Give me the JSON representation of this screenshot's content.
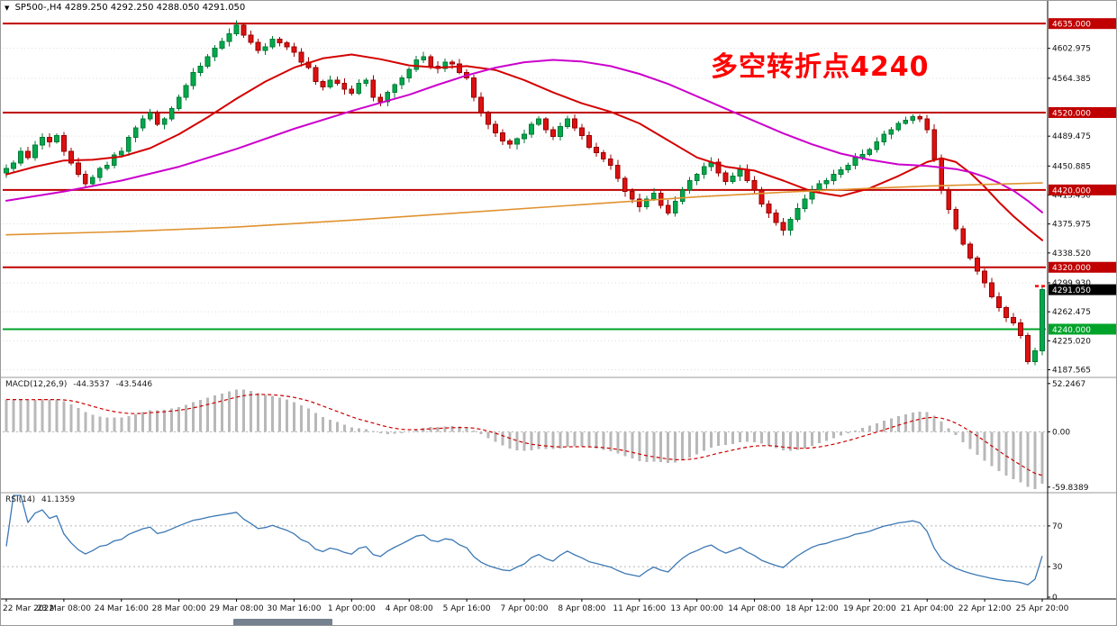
{
  "header": {
    "dropdown_icon": "▼",
    "symbol_info": "SP500-,H4 4289.250 4292.250 4288.050 4291.050"
  },
  "annotation": {
    "text": "多空转折点4240",
    "color": "#ff0000"
  },
  "colors": {
    "up_candle": "#00a94c",
    "up_border": "#007a35",
    "down_candle": "#dd1111",
    "down_border": "#990000",
    "ma_fast": "#d40000",
    "ma_slow": "#cc00cc",
    "ma_long": "#e0922f",
    "level_red": "#c00000",
    "level_green": "#00a32a",
    "current_badge_bg": "#000000",
    "macd_hist": "#b8b8b8",
    "macd_signal": "#cc0000",
    "rsi_line": "#3c78b4",
    "grid": "#dcdcdc",
    "axis_text": "#111111"
  },
  "chart_data": [
    {
      "type": "candlestick",
      "title": "SP500- H4 price chart",
      "y_range": [
        4180,
        4655
      ],
      "bars_per_label": 8,
      "x_labels": [
        "22 Mar 2022",
        "23 Mar 08:00",
        "24 Mar 16:00",
        "28 Mar 00:00",
        "29 Mar 08:00",
        "30 Mar 16:00",
        "1 Apr 00:00",
        "4 Apr 08:00",
        "5 Apr 16:00",
        "7 Apr 00:00",
        "8 Apr 08:00",
        "11 Apr 16:00",
        "13 Apr 00:00",
        "14 Apr 08:00",
        "18 Apr 12:00",
        "19 Apr 20:00",
        "21 Apr 04:00",
        "22 Apr 12:00",
        "25 Apr 20:00"
      ],
      "y_ticks": [
        {
          "label": "4602.975",
          "value": 4602.975
        },
        {
          "label": "4564.385",
          "value": 4564.385
        },
        {
          "label": "4489.475",
          "value": 4489.475
        },
        {
          "label": "4450.885",
          "value": 4450.885
        },
        {
          "label": "4413.430",
          "value": 4413.43
        },
        {
          "label": "4375.975",
          "value": 4375.975
        },
        {
          "label": "4338.520",
          "value": 4338.52
        },
        {
          "label": "4299.930",
          "value": 4299.93
        },
        {
          "label": "4262.475",
          "value": 4262.475
        },
        {
          "label": "4225.020",
          "value": 4225.02
        },
        {
          "label": "4187.565",
          "value": 4187.565
        }
      ],
      "levels": [
        {
          "label": "4635.000",
          "value": 4635.0,
          "color": "#c00000"
        },
        {
          "label": "4520.000",
          "value": 4520.0,
          "color": "#c00000"
        },
        {
          "label": "4420.000",
          "value": 4420.0,
          "color": "#c00000"
        },
        {
          "label": "4320.000",
          "value": 4320.0,
          "color": "#c00000"
        },
        {
          "label": "4240.000",
          "value": 4240.0,
          "color": "#00a32a"
        }
      ],
      "current_price": {
        "label": "4291.050",
        "value": 4291.05
      },
      "end_markers": {
        "price": 4296,
        "color": "#ff0000",
        "count": 2
      },
      "first_open": 4442,
      "closes": [
        4448,
        4455,
        4470,
        4462,
        4478,
        4488,
        4482,
        4490,
        4470,
        4455,
        4440,
        4428,
        4436,
        4448,
        4452,
        4465,
        4470,
        4488,
        4500,
        4512,
        4520,
        4505,
        4512,
        4525,
        4540,
        4555,
        4572,
        4580,
        4592,
        4603,
        4612,
        4622,
        4633,
        4620,
        4611,
        4600,
        4605,
        4615,
        4610,
        4605,
        4598,
        4585,
        4578,
        4560,
        4553,
        4562,
        4558,
        4550,
        4545,
        4558,
        4562,
        4540,
        4534,
        4546,
        4556,
        4565,
        4576,
        4588,
        4592,
        4580,
        4577,
        4585,
        4583,
        4572,
        4565,
        4540,
        4520,
        4505,
        4494,
        4483,
        4479,
        4486,
        4492,
        4505,
        4512,
        4498,
        4489,
        4502,
        4512,
        4500,
        4490,
        4475,
        4468,
        4460,
        4452,
        4435,
        4418,
        4408,
        4398,
        4408,
        4416,
        4400,
        4390,
        4405,
        4420,
        4432,
        4440,
        4450,
        4456,
        4442,
        4431,
        4438,
        4446,
        4432,
        4420,
        4402,
        4390,
        4378,
        4368,
        4382,
        4396,
        4408,
        4420,
        4428,
        4432,
        4440,
        4446,
        4452,
        4462,
        4466,
        4472,
        4482,
        4492,
        4498,
        4506,
        4510,
        4515,
        4512,
        4498,
        4460,
        4420,
        4395,
        4370,
        4350,
        4332,
        4315,
        4300,
        4282,
        4268,
        4255,
        4248,
        4232,
        4198,
        4212,
        4291
      ],
      "ma_lines": [
        {
          "name": "ma-fast-red",
          "color": "#d40000",
          "width": 2,
          "points": [
            [
              0,
              4440
            ],
            [
              4,
              4450
            ],
            [
              8,
              4458
            ],
            [
              12,
              4459
            ],
            [
              16,
              4463
            ],
            [
              20,
              4474
            ],
            [
              24,
              4492
            ],
            [
              28,
              4514
            ],
            [
              32,
              4538
            ],
            [
              36,
              4560
            ],
            [
              40,
              4578
            ],
            [
              44,
              4590
            ],
            [
              48,
              4595
            ],
            [
              52,
              4589
            ],
            [
              56,
              4581
            ],
            [
              60,
              4578
            ],
            [
              64,
              4580
            ],
            [
              68,
              4575
            ],
            [
              72,
              4562
            ],
            [
              76,
              4546
            ],
            [
              80,
              4532
            ],
            [
              84,
              4521
            ],
            [
              88,
              4506
            ],
            [
              92,
              4484
            ],
            [
              96,
              4462
            ],
            [
              100,
              4450
            ],
            [
              104,
              4445
            ],
            [
              108,
              4432
            ],
            [
              112,
              4418
            ],
            [
              116,
              4412
            ],
            [
              120,
              4422
            ],
            [
              124,
              4438
            ],
            [
              128,
              4456
            ],
            [
              130,
              4461
            ],
            [
              132,
              4456
            ],
            [
              134,
              4442
            ],
            [
              136,
              4424
            ],
            [
              138,
              4404
            ],
            [
              140,
              4386
            ],
            [
              142,
              4370
            ],
            [
              144,
              4355
            ]
          ]
        },
        {
          "name": "ma-slow-magenta",
          "color": "#cc00cc",
          "width": 2,
          "points": [
            [
              0,
              4406
            ],
            [
              8,
              4418
            ],
            [
              16,
              4432
            ],
            [
              24,
              4450
            ],
            [
              32,
              4473
            ],
            [
              40,
              4499
            ],
            [
              48,
              4522
            ],
            [
              56,
              4543
            ],
            [
              60,
              4556
            ],
            [
              64,
              4568
            ],
            [
              68,
              4578
            ],
            [
              72,
              4585
            ],
            [
              76,
              4588
            ],
            [
              80,
              4586
            ],
            [
              84,
              4580
            ],
            [
              88,
              4570
            ],
            [
              92,
              4557
            ],
            [
              96,
              4541
            ],
            [
              100,
              4525
            ],
            [
              104,
              4509
            ],
            [
              108,
              4493
            ],
            [
              112,
              4479
            ],
            [
              116,
              4467
            ],
            [
              120,
              4459
            ],
            [
              124,
              4453
            ],
            [
              128,
              4451
            ],
            [
              132,
              4447
            ],
            [
              134,
              4443
            ],
            [
              136,
              4437
            ],
            [
              138,
              4429
            ],
            [
              140,
              4419
            ],
            [
              142,
              4406
            ],
            [
              144,
              4391
            ]
          ]
        },
        {
          "name": "ma-long-orange",
          "color": "#e0922f",
          "width": 1.6,
          "points": [
            [
              0,
              4362
            ],
            [
              16,
              4366
            ],
            [
              32,
              4372
            ],
            [
              48,
              4381
            ],
            [
              64,
              4391
            ],
            [
              80,
              4401
            ],
            [
              96,
              4411
            ],
            [
              108,
              4417
            ],
            [
              120,
              4422
            ],
            [
              128,
              4425
            ],
            [
              136,
              4427
            ],
            [
              144,
              4429
            ]
          ]
        }
      ]
    },
    {
      "type": "histogram-line",
      "label": "MACD(12,26,9)",
      "value_main": "-44.3537",
      "value_signal": "-43.5446",
      "params": [
        12,
        26,
        9
      ],
      "y_range": [
        -62,
        55
      ],
      "y_ticks": [
        {
          "label": "52.2467",
          "value": 52.2467
        },
        {
          "label": "0.00",
          "value": 0
        },
        {
          "label": "-59.8389",
          "value": -59.8389
        }
      ]
    },
    {
      "type": "line",
      "label": "RSI(14)",
      "value": "41.1359",
      "period": 14,
      "y_range": [
        0,
        100
      ],
      "levels": [
        70,
        30
      ],
      "y_ticks": [
        {
          "label": "70",
          "value": 70
        },
        {
          "label": "30",
          "value": 30
        },
        {
          "label": "0",
          "value": 0
        }
      ]
    }
  ]
}
